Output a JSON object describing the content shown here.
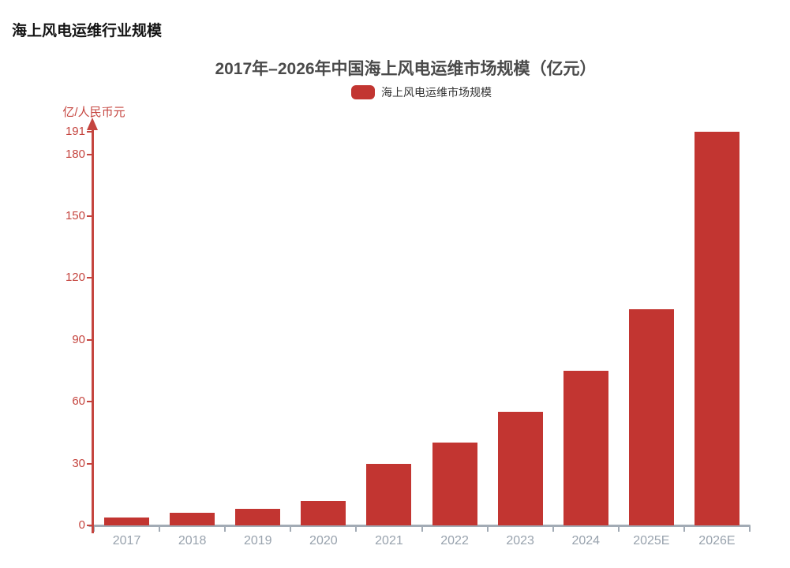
{
  "page_title": "海上风电运维行业规模",
  "chart_data": {
    "type": "bar",
    "title": "2017年–2026年中国海上风电运维市场规模（亿元）",
    "series_name": "海上风电运维市场规模",
    "ylabel": "亿/人民币元",
    "xlabel": "",
    "categories": [
      "2017",
      "2018",
      "2019",
      "2020",
      "2021",
      "2022",
      "2023",
      "2024",
      "2025E",
      "2026E"
    ],
    "values": [
      4,
      6,
      8,
      12,
      30,
      40,
      55,
      75,
      105,
      191
    ],
    "yticks": [
      0,
      30,
      60,
      90,
      120,
      150,
      180,
      191
    ],
    "ylim": [
      0,
      191
    ],
    "grid": false,
    "legend_position": "top-center",
    "colors": {
      "bar": "#c23531",
      "axis": "#c5453f",
      "x_axis_line": "#a2abb5",
      "x_label": "#98a2ad",
      "title": "#4a4a4a",
      "legend_text": "#333333"
    }
  }
}
